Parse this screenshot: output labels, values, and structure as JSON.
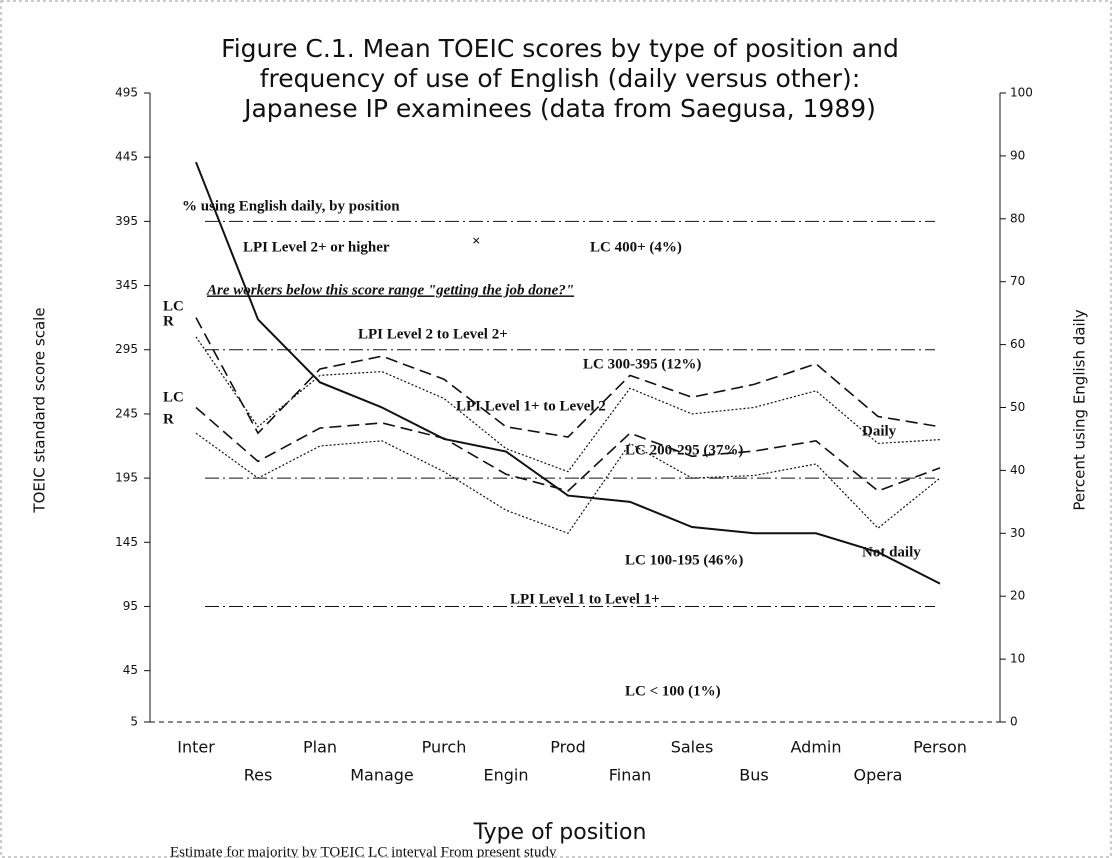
{
  "chart_data": {
    "type": "line",
    "title": [
      "Figure C.1. Mean TOEIC scores by type of position and",
      "frequency of use of English (daily versus other):",
      "Japanese IP examinees (data from Saegusa, 1989)"
    ],
    "x_label": "Type of position",
    "y_label": "TOEIC standard score scale",
    "y2_label": "Percent using English daily",
    "categories": [
      "Inter",
      "Res",
      "Plan",
      "Manage",
      "Purch",
      "Engin",
      "Prod",
      "Finan",
      "Sales",
      "Bus",
      "Admin",
      "Opera",
      "Person"
    ],
    "ylim": [
      5,
      495
    ],
    "yticks": [
      5,
      45,
      95,
      145,
      195,
      245,
      295,
      345,
      395,
      445,
      495
    ],
    "y2lim": [
      0,
      100
    ],
    "y2ticks": [
      0,
      10,
      20,
      30,
      40,
      50,
      60,
      70,
      80,
      90,
      100
    ],
    "series": [
      {
        "name": "LC",
        "color": "#111111",
        "line_style": "dashed",
        "values": [
          320,
          230,
          280,
          290,
          272,
          235,
          227,
          275,
          258,
          268,
          284,
          243,
          235
        ]
      },
      {
        "name": "R",
        "color": "#111111",
        "line_style": "dotted",
        "values": [
          305,
          235,
          275,
          278,
          257,
          218,
          200,
          265,
          245,
          250,
          263,
          222,
          225
        ]
      },
      {
        "name": "LC",
        "color": "#111111",
        "line_style": "dashed",
        "values": [
          250,
          208,
          234,
          238,
          226,
          198,
          185,
          230,
          212,
          216,
          224,
          185,
          203
        ]
      },
      {
        "name": "R",
        "color": "#111111",
        "line_style": "dotted",
        "values": [
          230,
          195,
          220,
          224,
          200,
          170,
          152,
          222,
          195,
          197,
          206,
          156,
          195
        ]
      },
      {
        "name": "% using English daily, by position",
        "color": "#111111",
        "line_style": "solid",
        "axis": "y2",
        "values": [
          89,
          64,
          54,
          50,
          45,
          43,
          36,
          35,
          31,
          30,
          30,
          27,
          22
        ]
      }
    ],
    "reference_lines": [
      395,
      295,
      195,
      95
    ],
    "annotations": [
      "LPI Level 2+ or higher",
      "×",
      "LC 400+   (4%)",
      "Are workers below this score range \"getting the job done?\"",
      "LPI Level 2 to Level 2+",
      "LC 300-395 (12%)",
      "LPI Level 1+ to Level 2",
      "LC 200-295 (37%)",
      "Daily",
      "Not daily",
      "LC 100-195 (46%)",
      "LPI Level 1 to Level 1+",
      "LC < 100   (1%)"
    ],
    "footnote": "Estimate for majority by TOEIC LC interval   From present study"
  }
}
